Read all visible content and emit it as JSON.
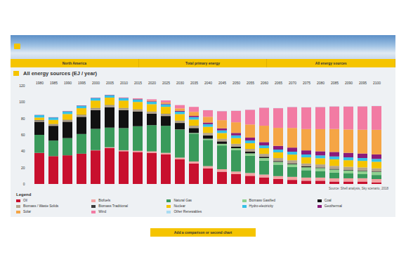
{
  "page": {
    "selectors": [
      "North America",
      "Total primary energy",
      "All energy sources"
    ],
    "button": "Add a comparison or second chart"
  },
  "chart_data": {
    "type": "bar",
    "title": "All energy sources (EJ / year)",
    "source": "Source: Shell analysis, Sky scenario, 2018",
    "legend_title": "Legend",
    "legend": "bottom",
    "stacked": true,
    "grid": false,
    "ylim": [
      0,
      120
    ],
    "yticks": [
      0,
      20,
      40,
      60,
      80,
      100,
      120
    ],
    "categories": [
      1980,
      1985,
      1990,
      1995,
      2000,
      2005,
      2010,
      2015,
      2020,
      2025,
      2030,
      2035,
      2040,
      2045,
      2050,
      2055,
      2060,
      2065,
      2070,
      2075,
      2080,
      2085,
      2090,
      2095,
      2100
    ],
    "series": [
      {
        "name": "Oil",
        "color": "#c8102e",
        "values": [
          38,
          34,
          35,
          37,
          41,
          44,
          40,
          39,
          38,
          36,
          30,
          25,
          19,
          15,
          12,
          10,
          8,
          6,
          5,
          4,
          4,
          3,
          3,
          3,
          2
        ]
      },
      {
        "name": "Biofuels",
        "color": "#f4a3a3",
        "values": [
          0,
          0,
          0,
          0,
          0.3,
          0.8,
          1.2,
          1.5,
          1.8,
          2,
          2.2,
          2.5,
          2.8,
          3,
          3.2,
          3.4,
          3.5,
          3.6,
          3.7,
          3.8,
          3.8,
          3.9,
          3.9,
          4,
          4
        ]
      },
      {
        "name": "Natural Gas",
        "color": "#3a9a5b",
        "values": [
          22,
          19,
          21,
          24,
          26,
          24,
          27,
          30,
          32,
          33,
          34,
          34,
          32,
          29,
          26,
          21,
          17,
          14,
          12,
          9,
          8,
          7,
          6,
          5,
          5
        ]
      },
      {
        "name": "Biomass Gasified",
        "color": "#8fd18f",
        "values": [
          0,
          0,
          0,
          0,
          0,
          0,
          0,
          0,
          0,
          0,
          0.3,
          0.8,
          1.5,
          2,
          2.5,
          3,
          3.2,
          3.4,
          3.5,
          3.6,
          3.6,
          3.7,
          3.7,
          3.8,
          3.8
        ]
      },
      {
        "name": "Coal",
        "color": "#111111",
        "values": [
          16,
          18,
          20,
          21,
          23,
          25,
          22,
          18,
          14,
          12,
          8,
          6,
          4,
          3,
          2,
          2,
          1.5,
          1,
          1,
          1,
          0.8,
          0.8,
          0.6,
          0.6,
          0.5
        ]
      },
      {
        "name": "Biomass / Waste Solids",
        "color": "#b5a48c",
        "values": [
          1.5,
          1.6,
          1.8,
          2,
          2,
          2.1,
          2.2,
          2.2,
          2.3,
          2.4,
          2.5,
          2.6,
          2.8,
          3,
          3.2,
          3.3,
          3.4,
          3.5,
          3.6,
          3.6,
          3.7,
          3.7,
          3.8,
          3.8,
          3.8
        ]
      },
      {
        "name": "Biomass Traditional",
        "color": "#3a3a3a",
        "values": [
          0.6,
          0.6,
          0.6,
          0.5,
          0.5,
          0.5,
          0.4,
          0.4,
          0.3,
          0.3,
          0.3,
          0.2,
          0.2,
          0.2,
          0.1,
          0.1,
          0.1,
          0.1,
          0.1,
          0,
          0,
          0,
          0,
          0,
          0
        ]
      },
      {
        "name": "Nuclear",
        "color": "#f5c400",
        "values": [
          3,
          5,
          7,
          8,
          9,
          9,
          9,
          9,
          9,
          8.5,
          8,
          7.5,
          7.5,
          7,
          7,
          7,
          7,
          7,
          7,
          7.5,
          7.5,
          8,
          8,
          8,
          8
        ]
      },
      {
        "name": "Hydro-electricity",
        "color": "#35c0e6",
        "values": [
          3,
          3,
          3,
          3,
          3,
          3,
          3,
          3,
          3,
          3,
          3,
          3,
          3.2,
          3.2,
          3.3,
          3.3,
          3.4,
          3.4,
          3.5,
          3.5,
          3.5,
          3.5,
          3.5,
          3.5,
          3.5
        ]
      },
      {
        "name": "Geothermal",
        "color": "#8b1a7a",
        "values": [
          0.2,
          0.3,
          0.4,
          0.4,
          0.4,
          0.4,
          0.4,
          0.5,
          0.6,
          0.8,
          1,
          1.5,
          2,
          2.5,
          3,
          3.5,
          4,
          4.5,
          5,
          5,
          5,
          5.5,
          5.5,
          5.5,
          5.5
        ]
      },
      {
        "name": "Solar",
        "color": "#f5a545",
        "values": [
          0,
          0,
          0,
          0,
          0,
          0,
          0,
          0.2,
          0.8,
          1.5,
          3,
          5,
          7,
          10,
          13,
          16,
          20,
          22,
          24,
          26,
          27,
          28,
          28.5,
          29,
          30
        ]
      },
      {
        "name": "Wind",
        "color": "#f27ba3",
        "values": [
          0,
          0,
          0,
          0,
          0,
          0,
          0.4,
          0.8,
          1.5,
          2.5,
          4,
          6,
          8,
          11,
          14,
          18,
          22,
          24,
          25.5,
          26.5,
          27,
          27.5,
          28,
          28.5,
          29
        ]
      },
      {
        "name": "Other Renewables",
        "color": "#a9dcf2",
        "values": [
          0,
          0,
          0,
          0,
          0,
          0,
          0,
          0,
          0,
          0,
          0,
          0,
          0.2,
          0.2,
          0.2,
          0.2,
          0.2,
          0.2,
          0.2,
          0.2,
          0.2,
          0.2,
          0.2,
          0.2,
          0.2
        ]
      }
    ]
  }
}
